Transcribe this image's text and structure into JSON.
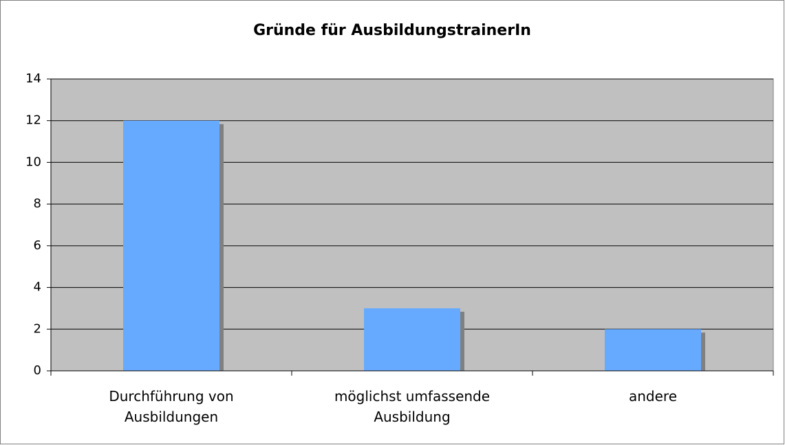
{
  "chart_data": {
    "type": "bar",
    "title": "Gründe für AusbildungstrainerIn",
    "categories": [
      "Durchführung von Ausbildungen",
      "möglichst umfassende Ausbildung",
      "andere"
    ],
    "values": [
      12,
      3,
      2
    ],
    "color": "#66aaff",
    "shadow": "#808080",
    "plot_background": "#c0c0c0",
    "ylim": [
      0,
      14
    ],
    "yticks": [
      0,
      2,
      4,
      6,
      8,
      10,
      12,
      14
    ],
    "grid": true
  }
}
